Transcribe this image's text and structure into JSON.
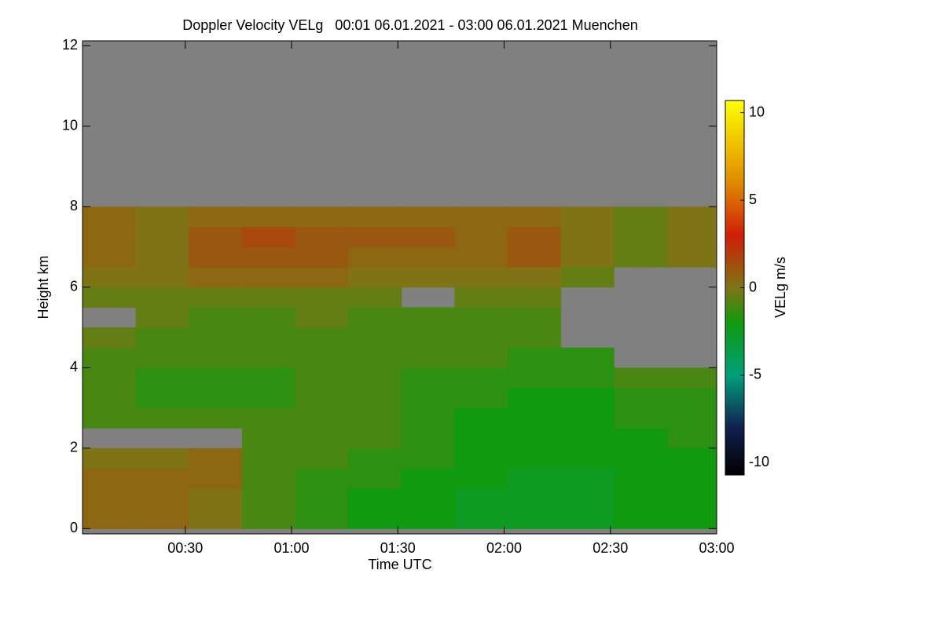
{
  "chart_data": {
    "type": "heatmap",
    "title": "Doppler Velocity VELg   00:01 06.01.2021 - 03:00 06.01.2021 Muenchen",
    "x_label": "Time UTC",
    "y_label": "Height km",
    "colorbar_label": "VELg m/s",
    "xlim": [
      1,
      180
    ],
    "ylim": [
      -0.13,
      12.12
    ],
    "xticks": [
      {
        "value": 30,
        "label": "00:30"
      },
      {
        "value": 60,
        "label": "01:00"
      },
      {
        "value": 90,
        "label": "01:30"
      },
      {
        "value": 120,
        "label": "02:00"
      },
      {
        "value": 150,
        "label": "02:30"
      },
      {
        "value": 180,
        "label": "03:00"
      }
    ],
    "yticks": [
      0,
      2,
      4,
      6,
      8,
      10,
      12
    ],
    "clim": [
      -10.7,
      10.7
    ],
    "cticks": [
      -10,
      -5,
      0,
      5,
      10
    ],
    "colorscale": [
      [
        -10.7,
        "#000000"
      ],
      [
        -8,
        "#102050"
      ],
      [
        -5,
        "#00a07a"
      ],
      [
        -2,
        "#109a10"
      ],
      [
        0,
        "#7f7414"
      ],
      [
        3,
        "#d01e08"
      ],
      [
        6,
        "#e08a00"
      ],
      [
        10.7,
        "#ffff00"
      ]
    ],
    "missing_color": "#808080",
    "xbins": [
      1,
      16,
      31,
      46,
      61,
      76,
      91,
      106,
      121,
      136,
      151,
      166,
      180
    ],
    "ybins": [
      0,
      0.5,
      1,
      1.5,
      2,
      2.5,
      3,
      3.5,
      4,
      4.5,
      5,
      5.5,
      6,
      6.5,
      7,
      7.5,
      8
    ],
    "values": [
      [
        0.5,
        0.5,
        0,
        -1,
        -1.5,
        -2,
        -2,
        -2.5,
        -2.5,
        -2.5,
        -2,
        -2
      ],
      [
        0.5,
        0.5,
        0,
        -1,
        -1.5,
        -2,
        -2,
        -2.5,
        -2.5,
        -2.5,
        -2,
        -2
      ],
      [
        0.5,
        0.5,
        0.5,
        -1,
        -1.5,
        -1.5,
        -2,
        -2,
        -2.5,
        -2.5,
        -2,
        -2
      ],
      [
        0,
        0,
        0.5,
        -1,
        -1,
        -1.5,
        -1.5,
        -2,
        -2,
        -2,
        -2,
        -2
      ],
      [
        null,
        null,
        null,
        -1,
        -1,
        -1,
        -1.5,
        -2,
        -2,
        -2,
        -2,
        -1.5
      ],
      [
        -1,
        -1,
        -1,
        -1,
        -1,
        -1,
        -1.5,
        -2,
        -2,
        -2,
        -1.5,
        -1.5
      ],
      [
        -1,
        -1.5,
        -1.5,
        -1.5,
        -1,
        -1,
        -1.5,
        -1.5,
        -2,
        -2,
        -1.5,
        -1.5
      ],
      [
        -1,
        -1.5,
        -1.5,
        -1.5,
        -1,
        -1,
        -1.5,
        -1.5,
        -1.5,
        -1.5,
        -1,
        -1
      ],
      [
        -1,
        -1,
        -1,
        -1,
        -1,
        -1,
        -1,
        -1,
        -1.5,
        -1.5,
        null,
        null
      ],
      [
        -0.5,
        -1,
        -1,
        -1,
        -1,
        -1,
        -1,
        -1,
        -1,
        null,
        null,
        null
      ],
      [
        null,
        -0.5,
        -1,
        -1,
        -0.5,
        -1,
        -1,
        -1,
        -1,
        null,
        null,
        null
      ],
      [
        -0.5,
        -0.5,
        -0.5,
        -0.5,
        -0.5,
        -0.5,
        null,
        -0.5,
        -0.5,
        null,
        null,
        null
      ],
      [
        0,
        0,
        0.5,
        0.5,
        0.5,
        0,
        0,
        0,
        0,
        -0.5,
        null,
        null
      ],
      [
        0.5,
        0,
        1,
        1,
        1,
        0.5,
        0.5,
        0.5,
        1,
        0,
        -0.5,
        0
      ],
      [
        0.5,
        0,
        1,
        1.5,
        1,
        1,
        1,
        0.5,
        1,
        0,
        -0.5,
        0
      ],
      [
        0.5,
        0,
        0.5,
        0.5,
        0.5,
        0.5,
        0.5,
        0.5,
        0.5,
        0,
        -0.5,
        0
      ]
    ]
  }
}
